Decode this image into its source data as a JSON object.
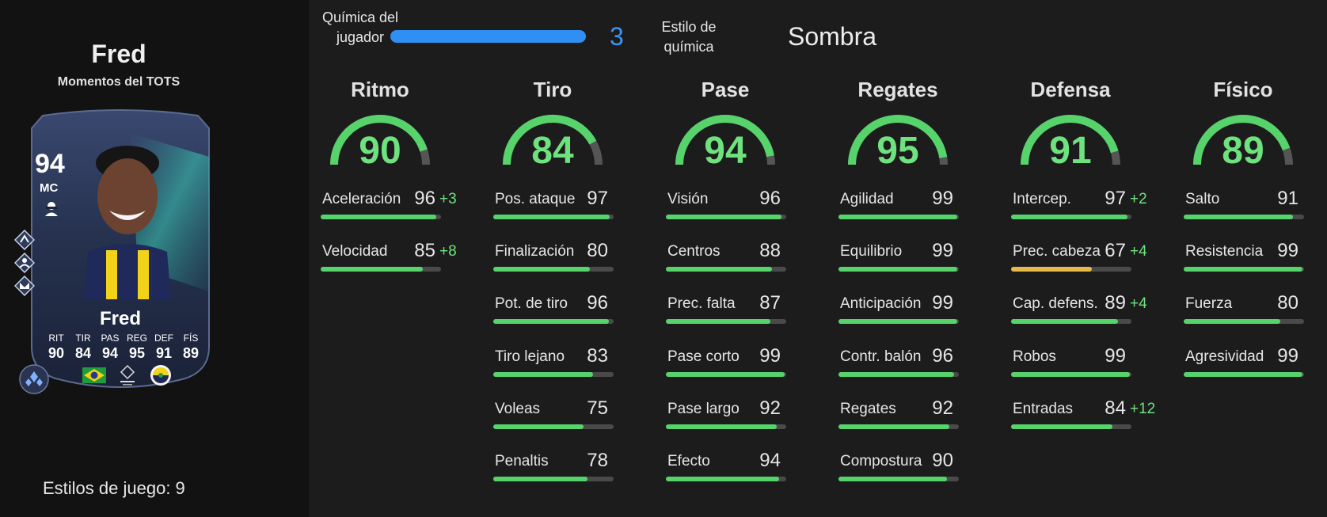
{
  "player": {
    "name": "Fred",
    "subtitle": "Momentos del TOTS",
    "playstyles_label": "Estilos de juego: 9"
  },
  "card": {
    "overall": "94",
    "position": "MC",
    "name": "Fred",
    "stats": [
      {
        "label": "RIT",
        "value": "90"
      },
      {
        "label": "TIR",
        "value": "84"
      },
      {
        "label": "PAS",
        "value": "94"
      },
      {
        "label": "REG",
        "value": "95"
      },
      {
        "label": "DEF",
        "value": "91"
      },
      {
        "label": "FÍS",
        "value": "89"
      }
    ],
    "badge_icons": [
      "brazil-flag-icon",
      "trendyol-superlig-icon",
      "fenerbahce-crest-icon"
    ],
    "playstyle_icons": [
      "playstyle-plus-icon-1",
      "playstyle-plus-icon-2",
      "playstyle-plus-icon-3"
    ]
  },
  "chemistry": {
    "label": "Química del jugador",
    "value": "3",
    "fill_fraction": 1.0,
    "style_label": "Estilo de química",
    "style_value": "Sombra"
  },
  "colors": {
    "good": "#57d36c",
    "good_text": "#6ee27e",
    "medium": "#e7b84a",
    "blue": "#2f8ff2",
    "track": "#4a4a4a"
  },
  "categories": [
    {
      "title": "Ritmo",
      "value": "90",
      "attributes": [
        {
          "name": "Aceleración",
          "value": "96",
          "bonus": "+3"
        },
        {
          "name": "Velocidad",
          "value": "85",
          "bonus": "+8"
        }
      ]
    },
    {
      "title": "Tiro",
      "value": "84",
      "attributes": [
        {
          "name": "Pos. ataque",
          "value": "97",
          "bonus": ""
        },
        {
          "name": "Finalización",
          "value": "80",
          "bonus": ""
        },
        {
          "name": "Pot. de tiro",
          "value": "96",
          "bonus": ""
        },
        {
          "name": "Tiro lejano",
          "value": "83",
          "bonus": ""
        },
        {
          "name": "Voleas",
          "value": "75",
          "bonus": ""
        },
        {
          "name": "Penaltis",
          "value": "78",
          "bonus": ""
        }
      ]
    },
    {
      "title": "Pase",
      "value": "94",
      "attributes": [
        {
          "name": "Visión",
          "value": "96",
          "bonus": ""
        },
        {
          "name": "Centros",
          "value": "88",
          "bonus": ""
        },
        {
          "name": "Prec. falta",
          "value": "87",
          "bonus": ""
        },
        {
          "name": "Pase corto",
          "value": "99",
          "bonus": ""
        },
        {
          "name": "Pase largo",
          "value": "92",
          "bonus": ""
        },
        {
          "name": "Efecto",
          "value": "94",
          "bonus": ""
        }
      ]
    },
    {
      "title": "Regates",
      "value": "95",
      "attributes": [
        {
          "name": "Agilidad",
          "value": "99",
          "bonus": ""
        },
        {
          "name": "Equilibrio",
          "value": "99",
          "bonus": ""
        },
        {
          "name": "Anticipación",
          "value": "99",
          "bonus": ""
        },
        {
          "name": "Contr. balón",
          "value": "96",
          "bonus": ""
        },
        {
          "name": "Regates",
          "value": "92",
          "bonus": ""
        },
        {
          "name": "Compostura",
          "value": "90",
          "bonus": ""
        }
      ]
    },
    {
      "title": "Defensa",
      "value": "91",
      "attributes": [
        {
          "name": "Intercep.",
          "value": "97",
          "bonus": "+2"
        },
        {
          "name": "Prec. cabeza",
          "value": "67",
          "bonus": "+4"
        },
        {
          "name": "Cap. defens.",
          "value": "89",
          "bonus": "+4"
        },
        {
          "name": "Robos",
          "value": "99",
          "bonus": ""
        },
        {
          "name": "Entradas",
          "value": "84",
          "bonus": "+12"
        }
      ]
    },
    {
      "title": "Físico",
      "value": "89",
      "attributes": [
        {
          "name": "Salto",
          "value": "91",
          "bonus": ""
        },
        {
          "name": "Resistencia",
          "value": "99",
          "bonus": ""
        },
        {
          "name": "Fuerza",
          "value": "80",
          "bonus": ""
        },
        {
          "name": "Agresividad",
          "value": "99",
          "bonus": ""
        }
      ]
    }
  ]
}
